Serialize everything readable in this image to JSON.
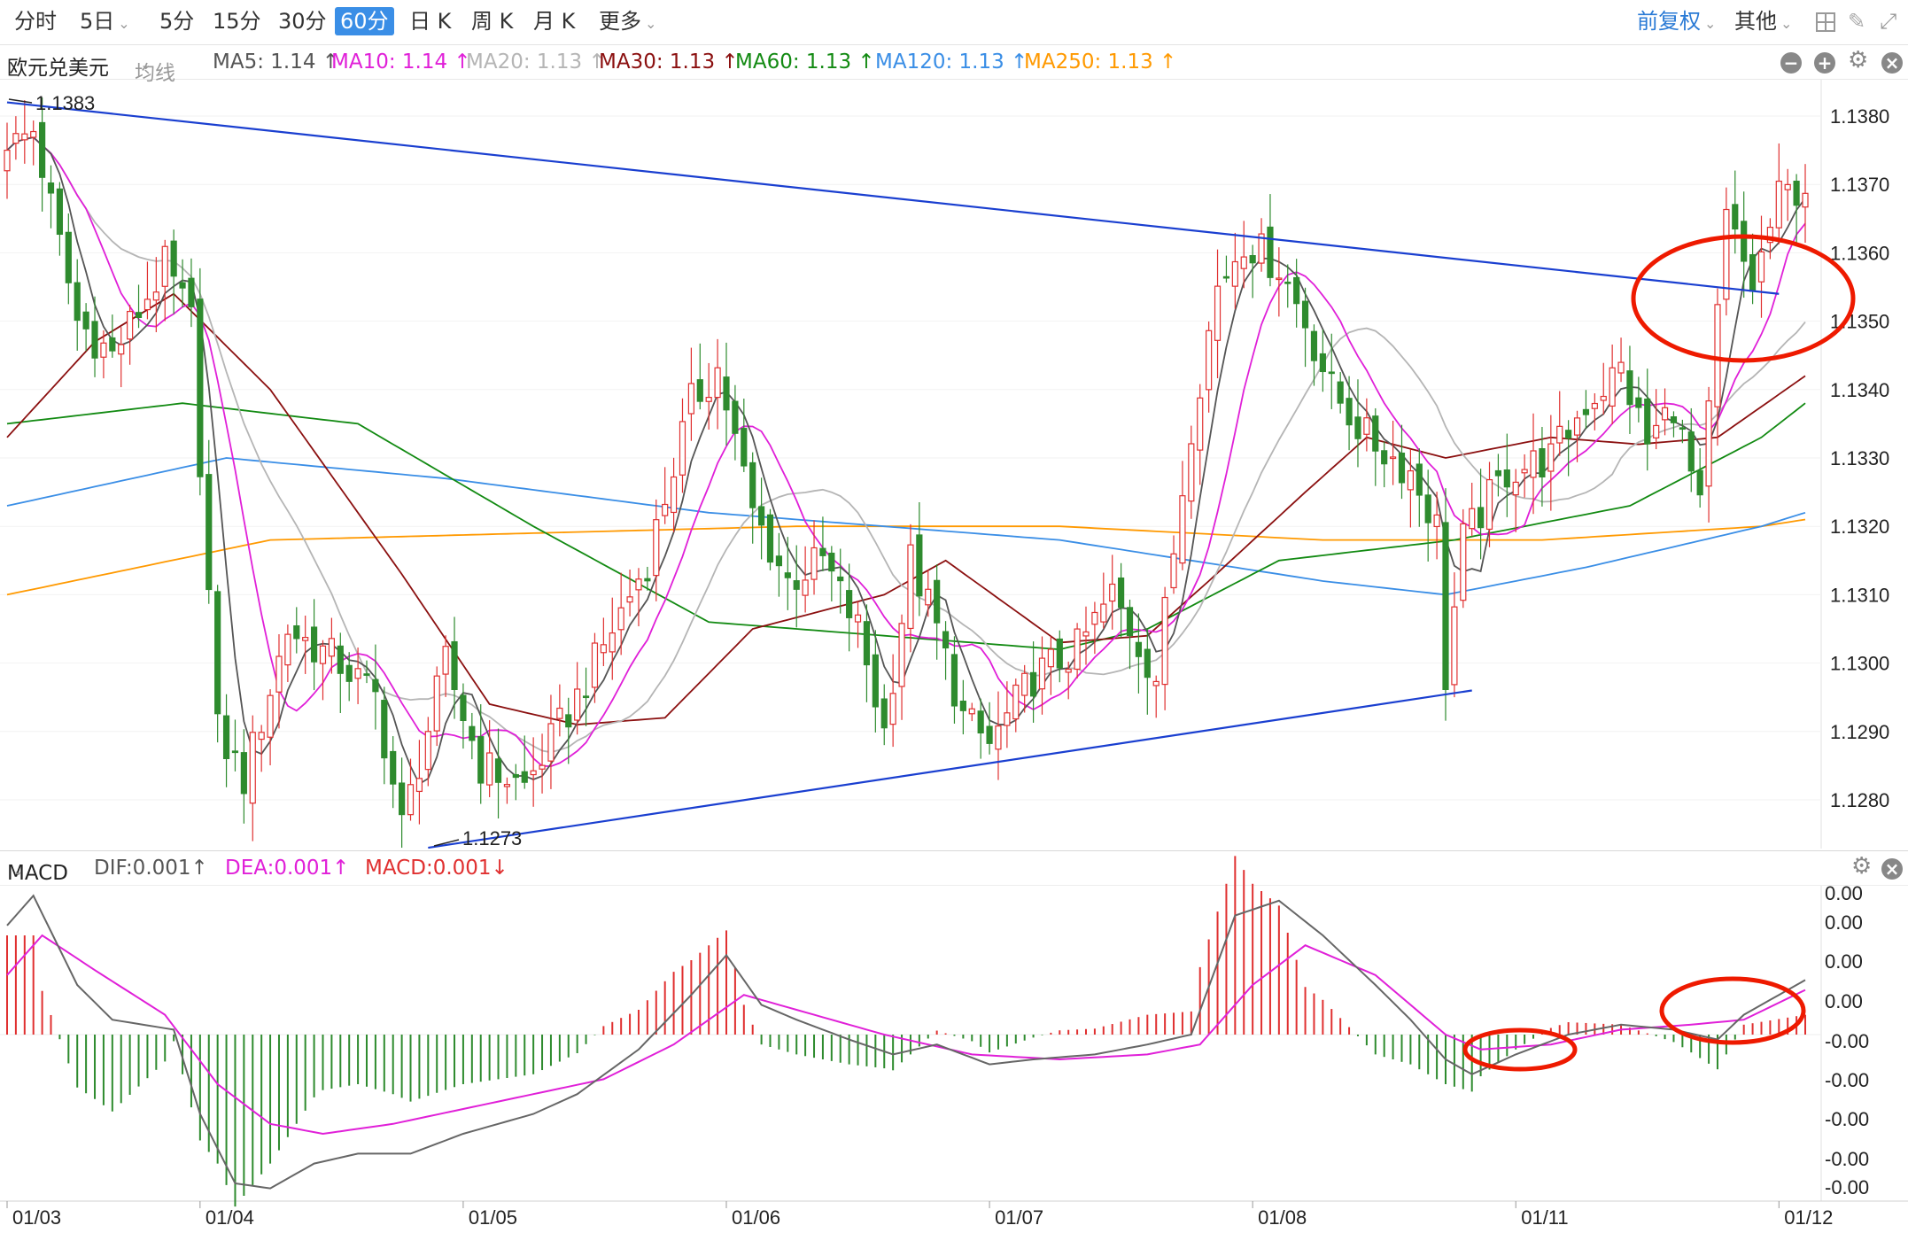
{
  "toolbar": {
    "periods": [
      "分时",
      "5日",
      "5分",
      "15分",
      "30分",
      "60分",
      "日 K",
      "周 K",
      "月 K",
      "更多"
    ],
    "active_period": "60分",
    "adjust": "前复权",
    "other": "其他"
  },
  "instrument": {
    "name": "欧元兑美元",
    "avg_line": "均线"
  },
  "ma_legend": [
    {
      "label": "MA5: 1.14",
      "arrow": "↑",
      "color": "#555555"
    },
    {
      "label": "MA10: 1.14",
      "arrow": "↑",
      "color": "#e020d8"
    },
    {
      "label": "MA20: 1.13",
      "arrow": "↑",
      "color": "#b5b5b5"
    },
    {
      "label": "MA30: 1.13",
      "arrow": "↑",
      "color": "#8b1010"
    },
    {
      "label": "MA60: 1.13",
      "arrow": "↑",
      "color": "#128a12"
    },
    {
      "label": "MA120: 1.13",
      "arrow": "↑",
      "color": "#3a8ee6"
    },
    {
      "label": "MA250: 1.13",
      "arrow": "↑",
      "color": "#ff9900"
    }
  ],
  "macd_legend": {
    "name": "MACD",
    "dif": "DIF:0.001↑",
    "dea": "DEA:0.001↑",
    "macd": "MACD:0.001↓"
  },
  "colors": {
    "up": "#e03030",
    "down": "#2e8b2e",
    "trend": "#1a3fd0",
    "annotation": "#ee1a00",
    "dif": "#666666",
    "dea": "#e020d8"
  },
  "chart_data": [
    {
      "type": "candlestick",
      "title": "欧元兑美元",
      "period": "60分",
      "ylim": [
        1.1273,
        1.1383
      ],
      "y_ticks": [
        "1.1380",
        "1.1370",
        "1.1360",
        "1.1350",
        "1.1340",
        "1.1330",
        "1.1320",
        "1.1310",
        "1.1300",
        "1.1290",
        "1.1280"
      ],
      "x_ticks": [
        "01/03",
        "01/04",
        "01/05",
        "01/06",
        "01/07",
        "01/08",
        "01/11",
        "01/12"
      ],
      "high_label": "1.1383",
      "low_label": "1.1273",
      "ohlc_waypoints": [
        {
          "i": 0,
          "close": 1.1375
        },
        {
          "i": 3,
          "close": 1.1378
        },
        {
          "i": 8,
          "close": 1.135
        },
        {
          "i": 12,
          "close": 1.1345
        },
        {
          "i": 18,
          "close": 1.1358
        },
        {
          "i": 21,
          "close": 1.135
        },
        {
          "i": 24,
          "close": 1.129
        },
        {
          "i": 27,
          "close": 1.1283
        },
        {
          "i": 32,
          "close": 1.1305
        },
        {
          "i": 38,
          "close": 1.13
        },
        {
          "i": 42,
          "close": 1.1295
        },
        {
          "i": 45,
          "close": 1.1276
        },
        {
          "i": 50,
          "close": 1.13
        },
        {
          "i": 54,
          "close": 1.1285
        },
        {
          "i": 59,
          "close": 1.1282
        },
        {
          "i": 65,
          "close": 1.1295
        },
        {
          "i": 73,
          "close": 1.1315
        },
        {
          "i": 78,
          "close": 1.1338
        },
        {
          "i": 81,
          "close": 1.1343
        },
        {
          "i": 85,
          "close": 1.1322
        },
        {
          "i": 89,
          "close": 1.1312
        },
        {
          "i": 93,
          "close": 1.1315
        },
        {
          "i": 97,
          "close": 1.1305
        },
        {
          "i": 100,
          "close": 1.129
        },
        {
          "i": 103,
          "close": 1.1315
        },
        {
          "i": 106,
          "close": 1.1305
        },
        {
          "i": 109,
          "close": 1.1292
        },
        {
          "i": 112,
          "close": 1.1288
        },
        {
          "i": 117,
          "close": 1.1298
        },
        {
          "i": 122,
          "close": 1.1302
        },
        {
          "i": 126,
          "close": 1.131
        },
        {
          "i": 131,
          "close": 1.1298
        },
        {
          "i": 135,
          "close": 1.1335
        },
        {
          "i": 138,
          "close": 1.1355
        },
        {
          "i": 141,
          "close": 1.1362
        },
        {
          "i": 145,
          "close": 1.1358
        },
        {
          "i": 148,
          "close": 1.135
        },
        {
          "i": 151,
          "close": 1.134
        },
        {
          "i": 155,
          "close": 1.1333
        },
        {
          "i": 160,
          "close": 1.1328
        },
        {
          "i": 163,
          "close": 1.132
        },
        {
          "i": 164,
          "close": 1.1298
        },
        {
          "i": 166,
          "close": 1.1318
        },
        {
          "i": 171,
          "close": 1.1328
        },
        {
          "i": 176,
          "close": 1.133
        },
        {
          "i": 180,
          "close": 1.1338
        },
        {
          "i": 184,
          "close": 1.1343
        },
        {
          "i": 187,
          "close": 1.1332
        },
        {
          "i": 190,
          "close": 1.1338
        },
        {
          "i": 193,
          "close": 1.1322
        },
        {
          "i": 196,
          "close": 1.1365
        },
        {
          "i": 199,
          "close": 1.1355
        },
        {
          "i": 202,
          "close": 1.1368
        },
        {
          "i": 205,
          "close": 1.137
        }
      ],
      "ma_waypoints": {
        "MA60": [
          [
            0,
            1.1335
          ],
          [
            20,
            1.1338
          ],
          [
            40,
            1.1335
          ],
          [
            60,
            1.132
          ],
          [
            80,
            1.1306
          ],
          [
            100,
            1.1304
          ],
          [
            120,
            1.1302
          ],
          [
            130,
            1.1305
          ],
          [
            145,
            1.1315
          ],
          [
            165,
            1.1318
          ],
          [
            185,
            1.1323
          ],
          [
            200,
            1.1333
          ],
          [
            205,
            1.1338
          ]
        ],
        "MA120": [
          [
            0,
            1.1323
          ],
          [
            25,
            1.133
          ],
          [
            50,
            1.1327
          ],
          [
            80,
            1.1322
          ],
          [
            120,
            1.1318
          ],
          [
            150,
            1.1312
          ],
          [
            164,
            1.131
          ],
          [
            180,
            1.1314
          ],
          [
            200,
            1.132
          ],
          [
            205,
            1.1322
          ]
        ],
        "MA250": [
          [
            0,
            1.131
          ],
          [
            30,
            1.1318
          ],
          [
            60,
            1.1319
          ],
          [
            90,
            1.132
          ],
          [
            120,
            1.132
          ],
          [
            150,
            1.1318
          ],
          [
            175,
            1.1318
          ],
          [
            200,
            1.132
          ],
          [
            205,
            1.1321
          ]
        ],
        "MA30": [
          [
            0,
            1.1333
          ],
          [
            10,
            1.1347
          ],
          [
            19,
            1.1354
          ],
          [
            30,
            1.134
          ],
          [
            45,
            1.1313
          ],
          [
            55,
            1.1294
          ],
          [
            65,
            1.1291
          ],
          [
            75,
            1.1292
          ],
          [
            85,
            1.1305
          ],
          [
            100,
            1.131
          ],
          [
            107,
            1.1315
          ],
          [
            120,
            1.1303
          ],
          [
            130,
            1.1304
          ],
          [
            137,
            1.1312
          ],
          [
            148,
            1.1325
          ],
          [
            155,
            1.1333
          ],
          [
            164,
            1.133
          ],
          [
            176,
            1.1333
          ],
          [
            186,
            1.1332
          ],
          [
            195,
            1.1333
          ],
          [
            205,
            1.1342
          ]
        ]
      },
      "trendlines": [
        {
          "label": "upper",
          "from": [
            0,
            1.1382
          ],
          "to": [
            202,
            1.1354
          ]
        },
        {
          "label": "lower",
          "from": [
            48,
            1.1273
          ],
          "to": [
            167,
            1.1296
          ]
        }
      ],
      "annotations": [
        {
          "type": "ellipse",
          "region": "breakout above upper trendline near 01/12"
        }
      ]
    },
    {
      "type": "macd",
      "title": "MACD",
      "y_ticks": [
        "0.00",
        "0.00",
        "0.00",
        "0.00",
        "-0.00",
        "-0.00",
        "-0.00",
        "-0.00",
        "-0.00"
      ],
      "dif_waypoints": [
        [
          0,
          0.0022
        ],
        [
          3,
          0.0028
        ],
        [
          8,
          0.001
        ],
        [
          12,
          0.0003
        ],
        [
          19,
          0.0001
        ],
        [
          22,
          -0.0016
        ],
        [
          26,
          -0.003
        ],
        [
          30,
          -0.0031
        ],
        [
          35,
          -0.0026
        ],
        [
          40,
          -0.0024
        ],
        [
          46,
          -0.0024
        ],
        [
          52,
          -0.002
        ],
        [
          60,
          -0.0016
        ],
        [
          65,
          -0.0012
        ],
        [
          72,
          -0.0003
        ],
        [
          78,
          0.0008
        ],
        [
          82,
          0.0016
        ],
        [
          86,
          0.0006
        ],
        [
          90,
          0.0003
        ],
        [
          96,
          -0.0001
        ],
        [
          101,
          -0.0004
        ],
        [
          106,
          -0.0002
        ],
        [
          112,
          -0.0006
        ],
        [
          117,
          -0.0005
        ],
        [
          124,
          -0.0004
        ],
        [
          130,
          -0.0002
        ],
        [
          135,
          0.0
        ],
        [
          140,
          0.0024
        ],
        [
          145,
          0.0027
        ],
        [
          150,
          0.002
        ],
        [
          156,
          0.001
        ],
        [
          160,
          0.0003
        ],
        [
          164,
          -0.0005
        ],
        [
          167,
          -0.0008
        ],
        [
          172,
          -0.0004
        ],
        [
          178,
          0.0
        ],
        [
          184,
          0.0002
        ],
        [
          190,
          0.0001
        ],
        [
          195,
          -0.0001
        ],
        [
          198,
          0.0004
        ],
        [
          202,
          0.0008
        ],
        [
          205,
          0.0011
        ]
      ],
      "dea_waypoints": [
        [
          0,
          0.0012
        ],
        [
          4,
          0.002
        ],
        [
          10,
          0.0013
        ],
        [
          18,
          0.0004
        ],
        [
          24,
          -0.001
        ],
        [
          30,
          -0.0018
        ],
        [
          36,
          -0.002
        ],
        [
          44,
          -0.0018
        ],
        [
          52,
          -0.0015
        ],
        [
          60,
          -0.0012
        ],
        [
          68,
          -0.0009
        ],
        [
          76,
          -0.0002
        ],
        [
          84,
          0.0008
        ],
        [
          90,
          0.0005
        ],
        [
          100,
          0.0
        ],
        [
          110,
          -0.0004
        ],
        [
          120,
          -0.0005
        ],
        [
          130,
          -0.0004
        ],
        [
          136,
          -0.0002
        ],
        [
          142,
          0.001
        ],
        [
          148,
          0.0018
        ],
        [
          156,
          0.0012
        ],
        [
          164,
          0.0
        ],
        [
          168,
          -0.0003
        ],
        [
          176,
          -0.0002
        ],
        [
          184,
          0.0001
        ],
        [
          192,
          0.0002
        ],
        [
          198,
          0.0003
        ],
        [
          205,
          0.0009
        ]
      ]
    }
  ]
}
